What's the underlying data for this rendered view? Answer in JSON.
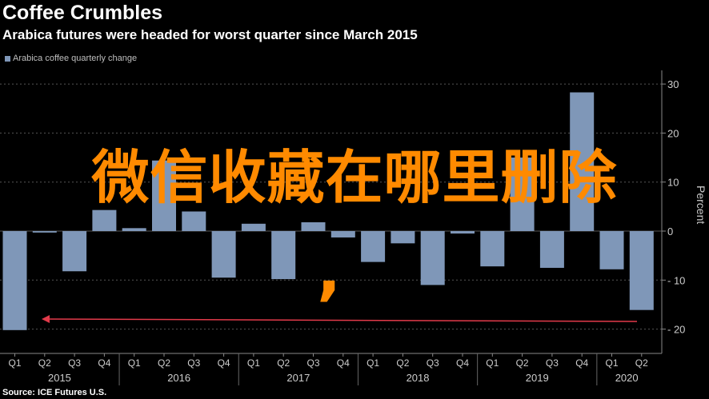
{
  "header": {
    "title": "Coffee Crumbles",
    "subtitle": "Arabica futures were headed for worst quarter since March 2015"
  },
  "source": "Source: ICE Futures U.S.",
  "overlay": {
    "text": "微信收藏在哪里删除",
    "comma": ","
  },
  "colors": {
    "bar": "#7f97b8",
    "background": "#000000",
    "grid": "#555555",
    "arrow": "#e23a4a",
    "overlay": "#ff8a00"
  },
  "chart_data": {
    "type": "bar",
    "legend": "Arabica coffee quarterly change",
    "ylabel": "Percent",
    "ylim": [
      -20,
      30
    ],
    "yticks": [
      30,
      20,
      10,
      0,
      -10,
      -20
    ],
    "categories": [
      "Q1",
      "Q2",
      "Q3",
      "Q4",
      "Q1",
      "Q2",
      "Q3",
      "Q4",
      "Q1",
      "Q2",
      "Q3",
      "Q4",
      "Q1",
      "Q2",
      "Q3",
      "Q4",
      "Q1",
      "Q2",
      "Q3",
      "Q4",
      "Q1",
      "Q2"
    ],
    "years": [
      {
        "label": "2015",
        "start": 0,
        "end": 3
      },
      {
        "label": "2016",
        "start": 4,
        "end": 7
      },
      {
        "label": "2017",
        "start": 8,
        "end": 11
      },
      {
        "label": "2018",
        "start": 12,
        "end": 15
      },
      {
        "label": "2019",
        "start": 16,
        "end": 19
      },
      {
        "label": "2020",
        "start": 20,
        "end": 21
      }
    ],
    "series": [
      {
        "values": [
          -20.2,
          -0.3,
          -8.2,
          4.3,
          0.6,
          14.4,
          4.0,
          -9.5,
          1.5,
          -9.8,
          1.8,
          -1.3,
          -6.3,
          -2.5,
          -11.0,
          -0.5,
          -7.2,
          15.0,
          -7.5,
          28.3,
          -7.8,
          -16.1
        ]
      }
    ]
  }
}
